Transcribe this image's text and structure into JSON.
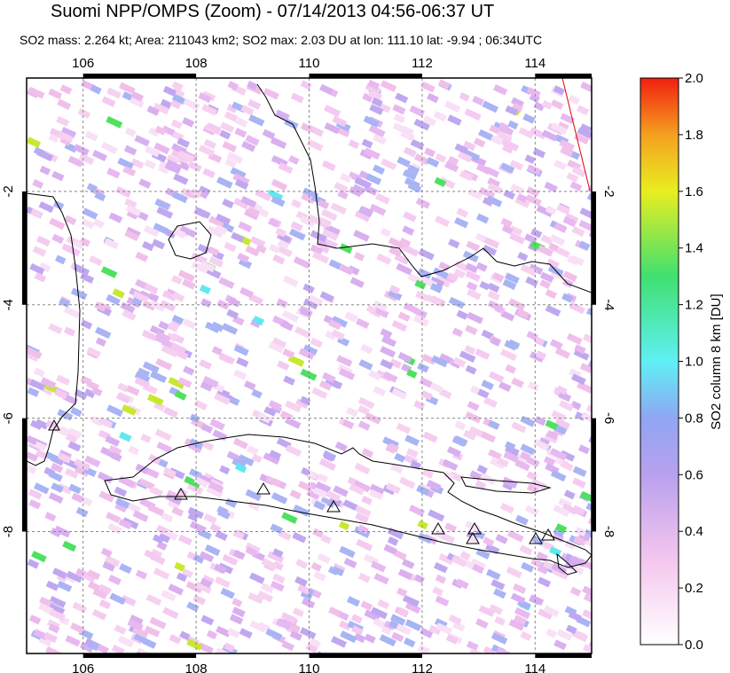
{
  "chart_data": {
    "type": "map",
    "title": "Suomi NPP/OMPS (Zoom) - 07/14/2013 04:56-06:37 UT",
    "subtitle": "SO2 mass: 2.264 kt; Area: 211043 km2; SO2 max: 2.03 DU at lon: 111.10 lat: -9.94 ; 06:34UTC",
    "xlim": [
      105,
      115
    ],
    "xticks": [
      106,
      108,
      110,
      112,
      114
    ],
    "ylim": [
      -10.15,
      0
    ],
    "yticks": [
      -2,
      -4,
      -6,
      -8
    ],
    "grid": true,
    "colorbar": {
      "label": "SO2 column 8 km [DU]",
      "lim": [
        0,
        2
      ],
      "ticks": [
        {
          "value": 0,
          "label": "0.0"
        },
        {
          "value": 0.2,
          "label": "0.2"
        },
        {
          "value": 0.4,
          "label": "0.4"
        },
        {
          "value": 0.6,
          "label": "0.6"
        },
        {
          "value": 0.8,
          "label": "0.8"
        },
        {
          "value": 1,
          "label": "1.0"
        },
        {
          "value": 1.2,
          "label": "1.2"
        },
        {
          "value": 1.4,
          "label": "1.4"
        },
        {
          "value": 1.6,
          "label": "1.6"
        },
        {
          "value": 1.8,
          "label": "1.8"
        },
        {
          "value": 2,
          "label": "2.0"
        }
      ]
    }
  }
}
